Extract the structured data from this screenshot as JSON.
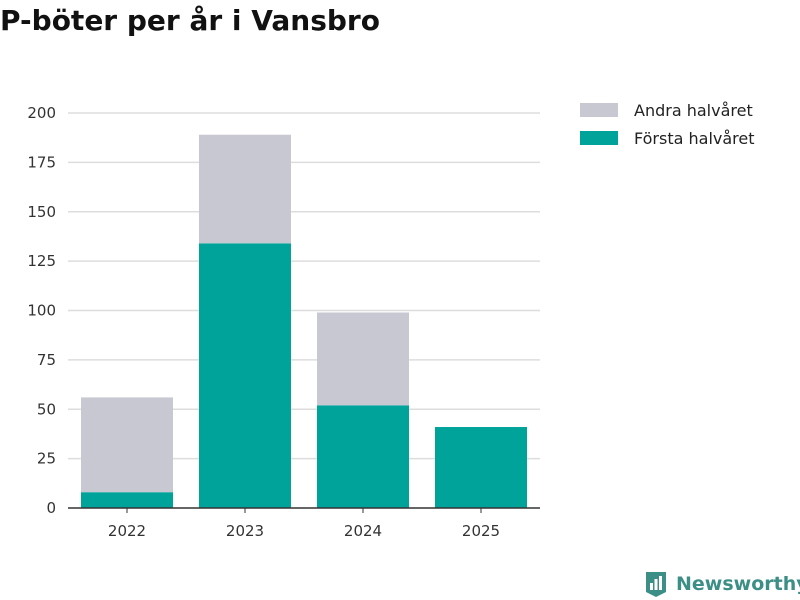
{
  "title": "P-böter per år i Vansbro",
  "brand": {
    "name": "Newsworthy",
    "color": "#3c8f86",
    "icon": "bar-chart-badge-icon"
  },
  "chart_data": {
    "type": "bar",
    "stacked": true,
    "categories": [
      "2022",
      "2023",
      "2024",
      "2025"
    ],
    "series": [
      {
        "name": "Första halvåret",
        "color": "#00a39a",
        "values": [
          8,
          134,
          52,
          41
        ]
      },
      {
        "name": "Andra halvåret",
        "color": "#c8c8d3",
        "values": [
          48,
          55,
          47,
          0
        ]
      }
    ],
    "yticks": [
      0,
      25,
      50,
      75,
      100,
      125,
      150,
      175,
      200
    ],
    "ylim": [
      0,
      200
    ],
    "grid": true,
    "legend_position": "top-right",
    "legend_order": [
      "Andra halvåret",
      "Första halvåret"
    ]
  }
}
